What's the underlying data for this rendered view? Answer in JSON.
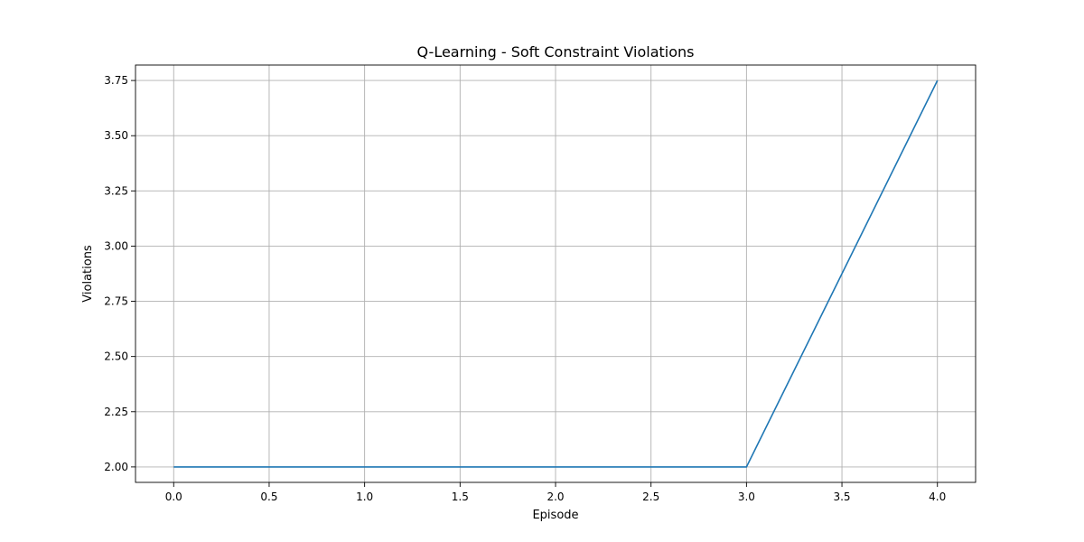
{
  "chart_data": {
    "type": "line",
    "title": "Q-Learning - Soft Constraint Violations",
    "xlabel": "Episode",
    "ylabel": "Violations",
    "xlim": [
      -0.2,
      4.2
    ],
    "ylim": [
      1.93,
      3.82
    ],
    "xticks": [
      0.0,
      0.5,
      1.0,
      1.5,
      2.0,
      2.5,
      3.0,
      3.5,
      4.0
    ],
    "xtick_labels": [
      "0.0",
      "0.5",
      "1.0",
      "1.5",
      "2.0",
      "2.5",
      "3.0",
      "3.5",
      "4.0"
    ],
    "yticks": [
      2.0,
      2.25,
      2.5,
      2.75,
      3.0,
      3.25,
      3.5,
      3.75
    ],
    "ytick_labels": [
      "2.00",
      "2.25",
      "2.50",
      "2.75",
      "3.00",
      "3.25",
      "3.50",
      "3.75"
    ],
    "grid": true,
    "series": [
      {
        "color": "#1f77b4",
        "x": [
          0,
          1,
          2,
          3,
          4
        ],
        "y": [
          2.0,
          2.0,
          2.0,
          2.0,
          3.75
        ]
      }
    ]
  }
}
